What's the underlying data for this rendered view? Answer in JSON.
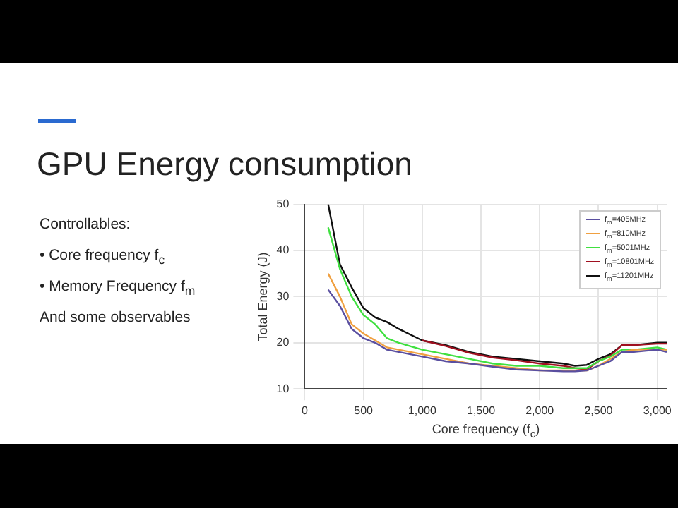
{
  "chart_data": {
    "type": "line",
    "title": "GPU Energy consumption",
    "xlabel": "Core frequency (f$_{c}$)",
    "ylabel": "Total Energy (J)",
    "annotations": [
      "Controllables:",
      "• Core frequency f$_{c}$",
      "• Memory Frequency f$_{m}$",
      "And some observables"
    ],
    "x": [
      200,
      300,
      400,
      500,
      600,
      700,
      800,
      1000,
      1200,
      1400,
      1600,
      1800,
      2000,
      2200,
      2300,
      2400,
      2500,
      2600,
      2700,
      2800,
      3000,
      3080
    ],
    "xlim": [
      0,
      3080
    ],
    "xticks": [
      0,
      500,
      {
        "value": 1000,
        "label": "1,000"
      },
      {
        "value": 1500,
        "label": "1,500"
      },
      {
        "value": 2000,
        "label": "2,000"
      },
      {
        "value": 2500,
        "label": "2,500"
      },
      {
        "value": 3000,
        "label": "3,000"
      }
    ],
    "ylim": [
      10,
      50
    ],
    "yticks": [
      10,
      20,
      30,
      40,
      50
    ],
    "grid": true,
    "legend": "top right",
    "marker": "none",
    "line_style": "solid",
    "series": [
      {
        "name": "f$_{m}$=405MHz",
        "color": "#5a4fa0",
        "values": [
          31.5,
          28,
          23,
          21,
          20,
          18.5,
          18,
          17,
          16,
          15.5,
          14.8,
          14.2,
          14,
          13.8,
          13.8,
          14,
          15,
          16,
          18,
          18,
          18.5,
          18
        ]
      },
      {
        "name": "f$_{m}$=810MHz",
        "color": "#f0a040",
        "values": [
          35,
          30,
          24,
          22,
          20.5,
          19,
          18.5,
          17.5,
          16.5,
          15.5,
          15,
          14.5,
          14,
          14,
          14,
          14,
          15,
          16.5,
          18,
          18.5,
          18.5,
          18.5
        ]
      },
      {
        "name": "f$_{m}$=5001MHz",
        "color": "#40e040",
        "values": [
          45,
          36,
          30,
          26,
          24,
          21,
          20,
          18.5,
          17.5,
          16.5,
          15.5,
          15,
          15,
          14.5,
          14.5,
          14.5,
          16,
          17,
          18.5,
          18.5,
          19,
          18.5
        ]
      },
      {
        "name": "f$_{m}$=10801MHz",
        "color": "#a01020",
        "values": [
          null,
          null,
          null,
          null,
          null,
          null,
          null,
          20.5,
          19.3,
          17.8,
          16.8,
          16.2,
          15.5,
          15,
          14.5,
          14.2,
          16,
          17.2,
          19.5,
          19.5,
          19.8,
          19.8
        ]
      },
      {
        "name": "f$_{m}$=11201MHz",
        "color": "#101010",
        "values": [
          50,
          37,
          32,
          27.5,
          25.5,
          24.5,
          23,
          20.5,
          19.5,
          18,
          17,
          16.5,
          16,
          15.5,
          15,
          15.2,
          16.5,
          17.5,
          19.5,
          19.5,
          20,
          20
        ]
      }
    ]
  }
}
